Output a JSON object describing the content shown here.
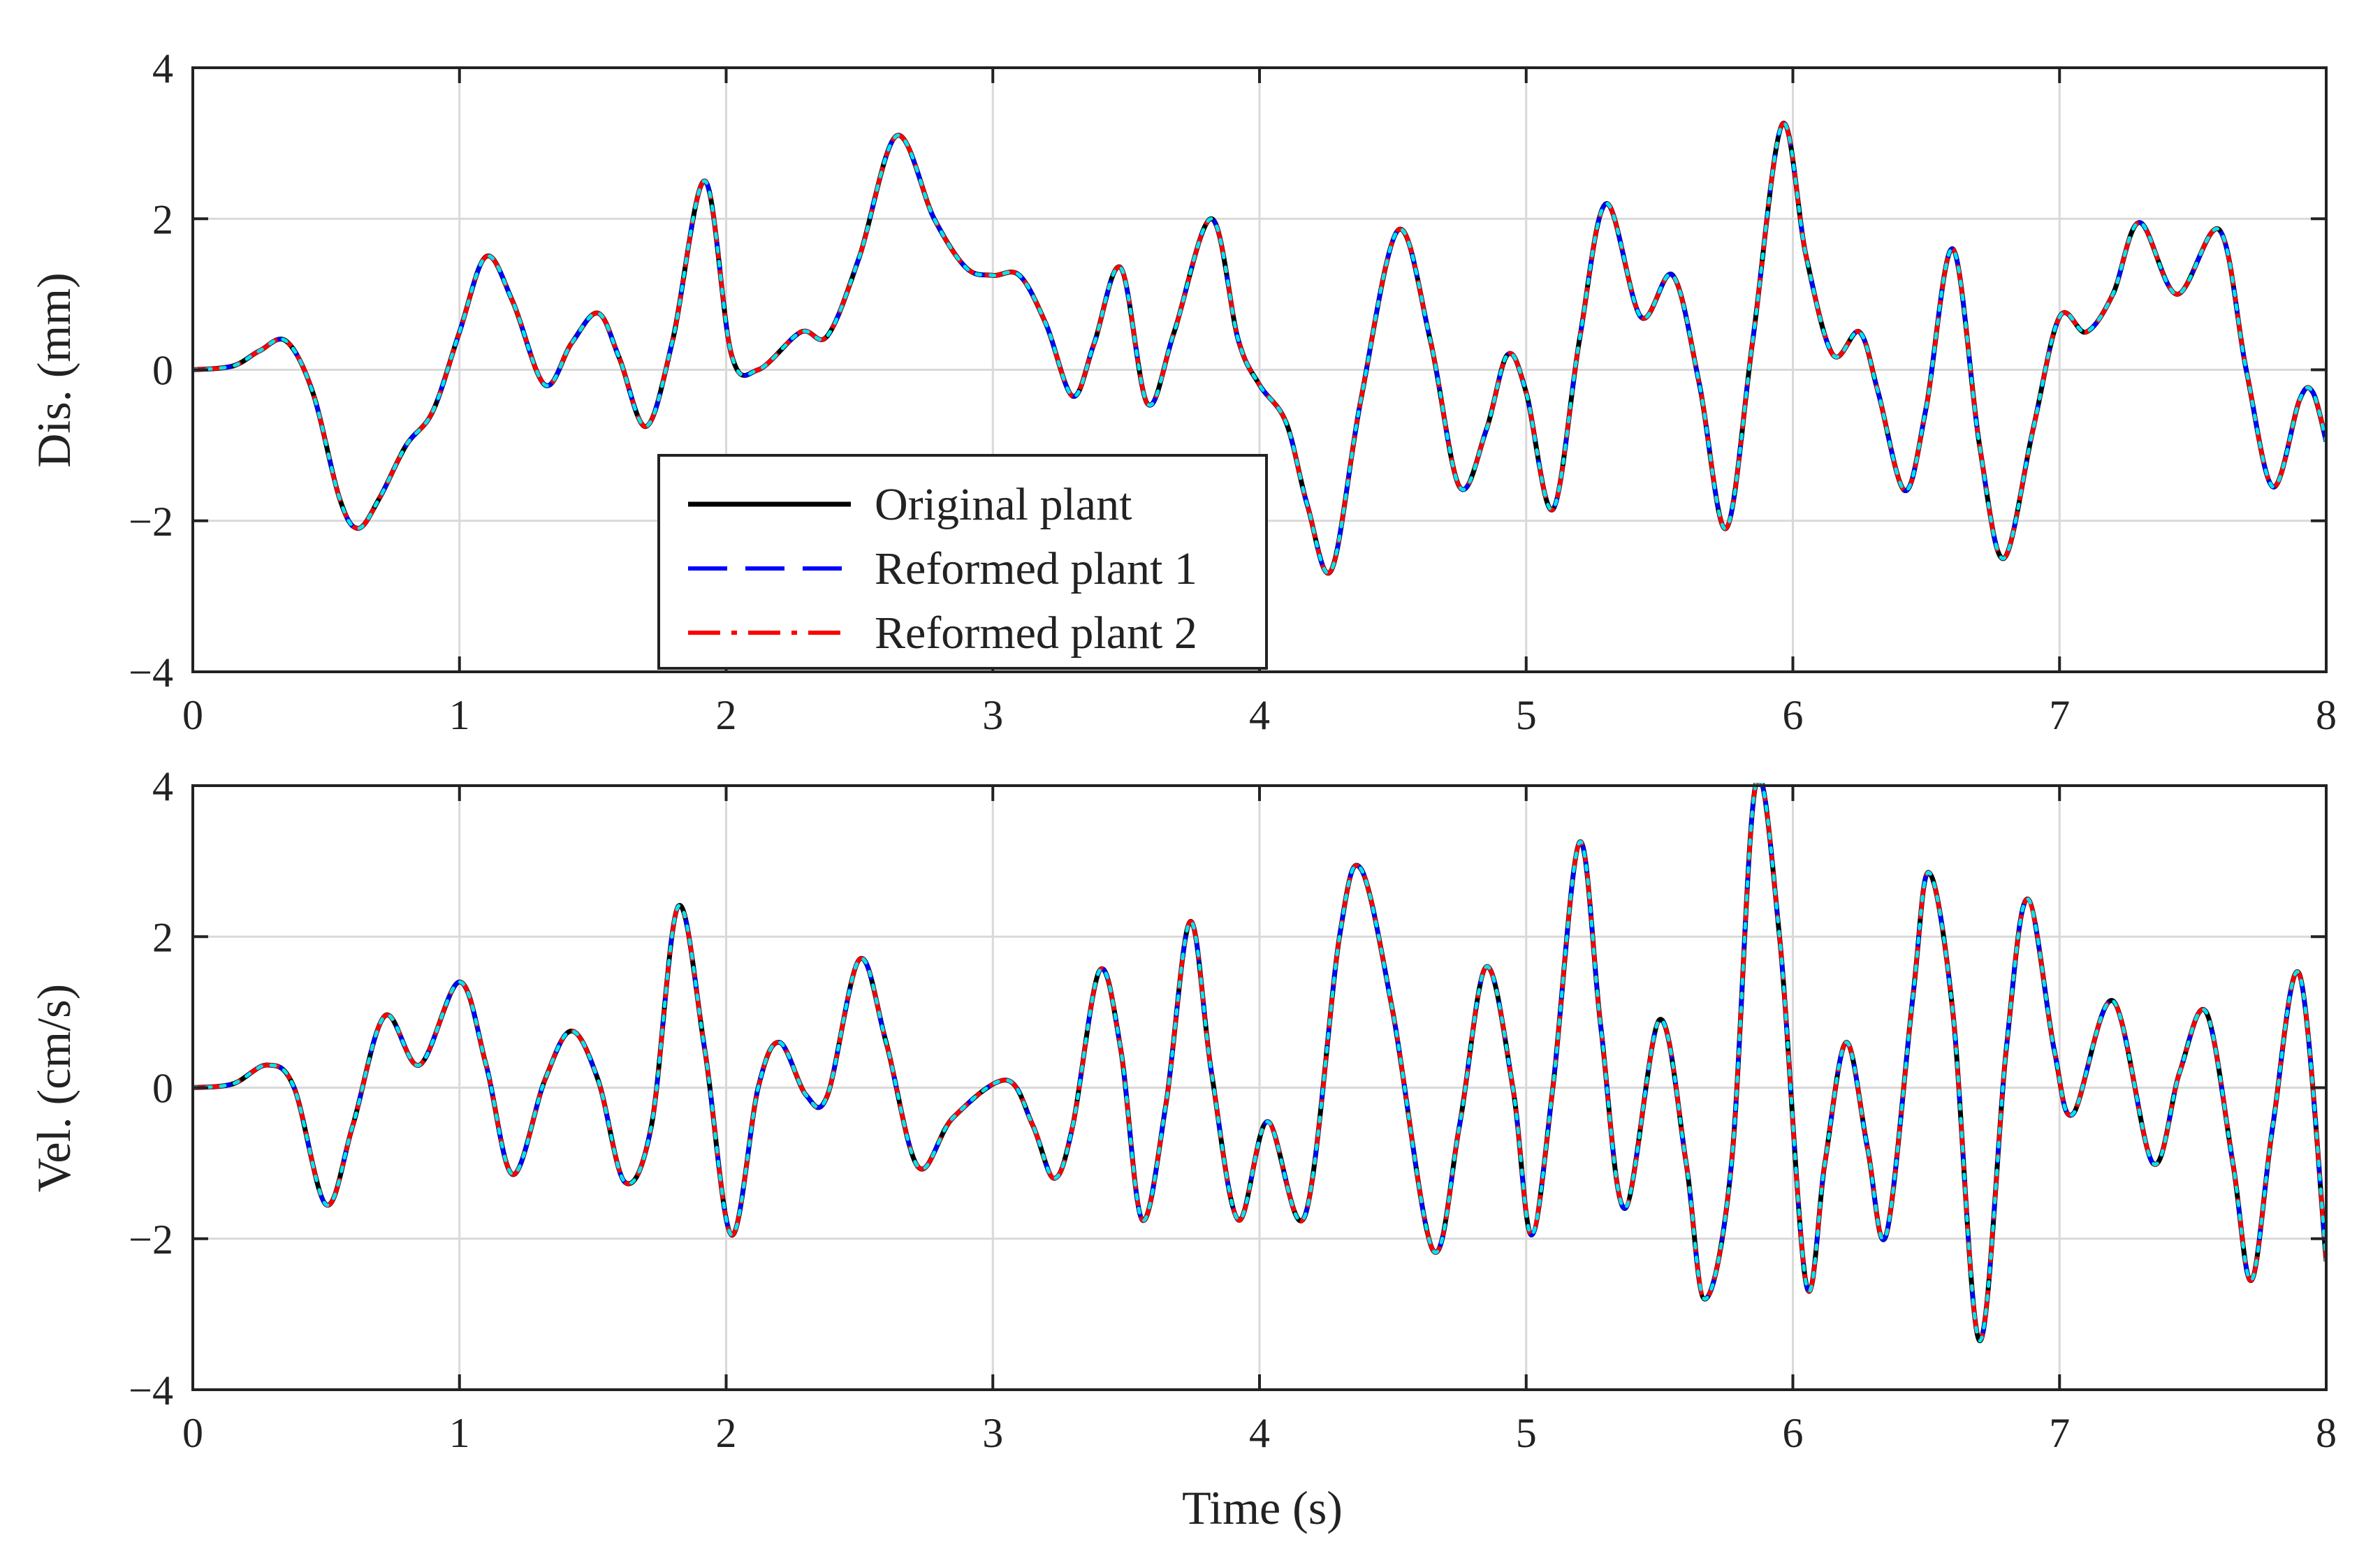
{
  "chart_data": [
    {
      "type": "line",
      "id": "displacement",
      "xlabel": "",
      "ylabel": "Dis. (mm)",
      "xlim": [
        0,
        8
      ],
      "ylim": [
        -4,
        4
      ],
      "xticks": [
        0,
        1,
        2,
        3,
        4,
        5,
        6,
        7,
        8
      ],
      "yticks": [
        -4,
        -2,
        0,
        2,
        4
      ],
      "xtick_labels": [
        "0",
        "1",
        "2",
        "3",
        "4",
        "5",
        "6",
        "7",
        "8"
      ],
      "ytick_labels": [
        "−4",
        "−2",
        "0",
        "2",
        "4"
      ],
      "grid": true,
      "legend": {
        "placement": "lower-center",
        "entries": [
          {
            "label": "Original plant",
            "style": "solid",
            "color": "#000000"
          },
          {
            "label": "Reformed plant 1",
            "style": "dashed",
            "color": "#0000ff"
          },
          {
            "label": "Reformed plant 2",
            "style": "dash-dot",
            "color": "#ff0000"
          }
        ]
      },
      "x": [
        0,
        0.15,
        0.25,
        0.35,
        0.45,
        0.55,
        0.62,
        0.7,
        0.8,
        0.9,
        1.0,
        1.1,
        1.2,
        1.32,
        1.42,
        1.52,
        1.6,
        1.7,
        1.8,
        1.92,
        2.02,
        2.12,
        2.28,
        2.38,
        2.5,
        2.64,
        2.78,
        2.9,
        3.0,
        3.1,
        3.2,
        3.3,
        3.38,
        3.48,
        3.58,
        3.68,
        3.82,
        3.92,
        4.0,
        4.1,
        4.18,
        4.27,
        4.38,
        4.52,
        4.64,
        4.75,
        4.85,
        4.93,
        5.0,
        5.1,
        5.2,
        5.3,
        5.43,
        5.55,
        5.65,
        5.75,
        5.85,
        5.96,
        6.05,
        6.15,
        6.25,
        6.32,
        6.42,
        6.5,
        6.6,
        6.7,
        6.79,
        6.9,
        7.0,
        7.1,
        7.2,
        7.3,
        7.44,
        7.6,
        7.7,
        7.8,
        7.9,
        7.95,
        8.0
      ],
      "series": [
        {
          "name": "Original plant",
          "color": "#000000",
          "style": "solid",
          "values": [
            0,
            0.05,
            0.25,
            0.38,
            -0.3,
            -1.7,
            -2.1,
            -1.7,
            -1.0,
            -0.55,
            0.5,
            1.5,
            0.9,
            -0.2,
            0.35,
            0.75,
            0.15,
            -0.75,
            0.4,
            2.5,
            0.2,
            0.0,
            0.5,
            0.45,
            1.5,
            3.1,
            2.0,
            1.35,
            1.25,
            1.25,
            0.6,
            -0.35,
            0.35,
            1.35,
            -0.45,
            0.5,
            2.0,
            0.4,
            -0.2,
            -0.7,
            -1.8,
            -2.65,
            -0.4,
            1.85,
            0.4,
            -1.55,
            -0.8,
            0.2,
            -0.3,
            -1.85,
            0.4,
            2.2,
            0.7,
            1.25,
            -0.2,
            -2.1,
            0.4,
            3.25,
            1.5,
            0.2,
            0.5,
            -0.3,
            -1.6,
            -0.5,
            1.6,
            -1.0,
            -2.5,
            -0.8,
            0.7,
            0.5,
            1.0,
            1.95,
            1.0,
            1.85,
            0.0,
            -1.55,
            -0.4,
            -0.3,
            -0.95
          ]
        },
        {
          "name": "Reformed plant 1",
          "color": "#0000ff",
          "style": "dashed",
          "values": [
            0,
            0.05,
            0.25,
            0.38,
            -0.3,
            -1.7,
            -2.1,
            -1.7,
            -1.0,
            -0.55,
            0.5,
            1.5,
            0.9,
            -0.2,
            0.35,
            0.75,
            0.15,
            -0.75,
            0.4,
            2.5,
            0.2,
            0.0,
            0.5,
            0.45,
            1.5,
            3.1,
            2.0,
            1.35,
            1.25,
            1.25,
            0.6,
            -0.35,
            0.35,
            1.35,
            -0.45,
            0.5,
            2.0,
            0.4,
            -0.2,
            -0.7,
            -1.8,
            -2.65,
            -0.4,
            1.85,
            0.4,
            -1.55,
            -0.8,
            0.2,
            -0.3,
            -1.85,
            0.4,
            2.2,
            0.7,
            1.25,
            -0.2,
            -2.1,
            0.4,
            3.25,
            1.5,
            0.2,
            0.5,
            -0.3,
            -1.6,
            -0.5,
            1.6,
            -1.0,
            -2.5,
            -0.8,
            0.7,
            0.5,
            1.0,
            1.95,
            1.0,
            1.85,
            0.0,
            -1.55,
            -0.4,
            -0.3,
            -0.95
          ]
        },
        {
          "name": "Reformed plant 2",
          "color": "#ff0000",
          "style": "dash-dot",
          "values": [
            0,
            0.05,
            0.25,
            0.38,
            -0.3,
            -1.7,
            -2.1,
            -1.7,
            -1.0,
            -0.55,
            0.5,
            1.5,
            0.9,
            -0.2,
            0.35,
            0.75,
            0.15,
            -0.75,
            0.4,
            2.5,
            0.2,
            0.0,
            0.5,
            0.45,
            1.5,
            3.1,
            2.0,
            1.35,
            1.25,
            1.25,
            0.6,
            -0.35,
            0.35,
            1.35,
            -0.45,
            0.5,
            2.0,
            0.4,
            -0.2,
            -0.7,
            -1.8,
            -2.65,
            -0.4,
            1.85,
            0.4,
            -1.55,
            -0.8,
            0.2,
            -0.3,
            -1.85,
            0.4,
            2.2,
            0.7,
            1.25,
            -0.2,
            -2.1,
            0.4,
            3.25,
            1.5,
            0.2,
            0.5,
            -0.3,
            -1.6,
            -0.5,
            1.6,
            -1.0,
            -2.5,
            -0.8,
            0.7,
            0.5,
            1.0,
            1.95,
            1.0,
            1.85,
            0.0,
            -1.55,
            -0.4,
            -0.3,
            -0.95
          ]
        },
        {
          "name": "",
          "color": "#00e5ee",
          "style": "dotted",
          "values": [
            0,
            0.05,
            0.25,
            0.38,
            -0.3,
            -1.7,
            -2.1,
            -1.7,
            -1.0,
            -0.55,
            0.5,
            1.5,
            0.9,
            -0.2,
            0.35,
            0.75,
            0.15,
            -0.75,
            0.4,
            2.5,
            0.2,
            0.0,
            0.5,
            0.45,
            1.5,
            3.1,
            2.0,
            1.35,
            1.25,
            1.25,
            0.6,
            -0.35,
            0.35,
            1.35,
            -0.45,
            0.5,
            2.0,
            0.4,
            -0.2,
            -0.7,
            -1.8,
            -2.65,
            -0.4,
            1.85,
            0.4,
            -1.55,
            -0.8,
            0.2,
            -0.3,
            -1.85,
            0.4,
            2.2,
            0.7,
            1.25,
            -0.2,
            -2.1,
            0.4,
            3.25,
            1.5,
            0.2,
            0.5,
            -0.3,
            -1.6,
            -0.5,
            1.6,
            -1.0,
            -2.5,
            -0.8,
            0.7,
            0.5,
            1.0,
            1.95,
            1.0,
            1.85,
            0.0,
            -1.55,
            -0.4,
            -0.3,
            -0.95
          ]
        }
      ]
    },
    {
      "type": "line",
      "id": "velocity",
      "xlabel": "Time (s)",
      "ylabel": "Vel. (cm/s)",
      "xlim": [
        0,
        8
      ],
      "ylim": [
        -4,
        4
      ],
      "xticks": [
        0,
        1,
        2,
        3,
        4,
        5,
        6,
        7,
        8
      ],
      "yticks": [
        -4,
        -2,
        0,
        2,
        4
      ],
      "xtick_labels": [
        "0",
        "1",
        "2",
        "3",
        "4",
        "5",
        "6",
        "7",
        "8"
      ],
      "ytick_labels": [
        "−4",
        "−2",
        "0",
        "2",
        "4"
      ],
      "grid": true,
      "x": [
        0,
        0.15,
        0.28,
        0.38,
        0.5,
        0.6,
        0.72,
        0.85,
        1.0,
        1.1,
        1.2,
        1.32,
        1.42,
        1.52,
        1.62,
        1.72,
        1.82,
        1.92,
        2.02,
        2.12,
        2.2,
        2.3,
        2.38,
        2.5,
        2.6,
        2.72,
        2.85,
        3.05,
        3.15,
        3.23,
        3.3,
        3.4,
        3.48,
        3.56,
        3.65,
        3.74,
        3.82,
        3.92,
        4.03,
        4.17,
        4.3,
        4.38,
        4.5,
        4.65,
        4.75,
        4.85,
        4.95,
        5.02,
        5.1,
        5.2,
        5.28,
        5.37,
        5.5,
        5.6,
        5.67,
        5.77,
        5.86,
        5.95,
        6.05,
        6.12,
        6.2,
        6.28,
        6.35,
        6.45,
        6.51,
        6.6,
        6.7,
        6.8,
        6.88,
        6.98,
        7.05,
        7.2,
        7.35,
        7.45,
        7.55,
        7.65,
        7.72,
        7.8,
        7.9,
        8.0
      ],
      "series": [
        {
          "name": "Original plant",
          "color": "#000000",
          "style": "solid",
          "values": [
            0,
            0.05,
            0.3,
            0.0,
            -1.55,
            -0.5,
            0.95,
            0.3,
            1.4,
            0.3,
            -1.15,
            0.1,
            0.75,
            0.1,
            -1.25,
            -0.5,
            2.4,
            0.5,
            -1.95,
            0.0,
            0.6,
            -0.1,
            -0.1,
            1.7,
            0.6,
            -1.05,
            -0.4,
            0.1,
            -0.5,
            -1.2,
            -0.5,
            1.55,
            0.5,
            -1.75,
            -0.2,
            2.2,
            0.2,
            -1.75,
            -0.45,
            -1.7,
            2.0,
            2.9,
            1.0,
            -2.15,
            -0.5,
            1.6,
            0.0,
            -1.95,
            0.0,
            3.25,
            0.8,
            -1.6,
            0.9,
            -1.0,
            -2.8,
            -1.0,
            4.0,
            2.0,
            -2.6,
            -1.0,
            0.6,
            -0.8,
            -1.95,
            1.2,
            2.85,
            1.0,
            -3.35,
            0.5,
            2.5,
            0.5,
            -0.35,
            1.15,
            -1.0,
            0.2,
            1.0,
            -1.0,
            -2.55,
            -0.5,
            1.5,
            -2.3
          ]
        },
        {
          "name": "Reformed plant 1",
          "color": "#0000ff",
          "style": "dashed",
          "values": [
            0,
            0.05,
            0.3,
            0.0,
            -1.55,
            -0.5,
            0.95,
            0.3,
            1.4,
            0.3,
            -1.15,
            0.1,
            0.75,
            0.1,
            -1.25,
            -0.5,
            2.4,
            0.5,
            -1.95,
            0.0,
            0.6,
            -0.1,
            -0.1,
            1.7,
            0.6,
            -1.05,
            -0.4,
            0.1,
            -0.5,
            -1.2,
            -0.5,
            1.55,
            0.5,
            -1.75,
            -0.2,
            2.2,
            0.2,
            -1.75,
            -0.45,
            -1.7,
            2.0,
            2.9,
            1.0,
            -2.15,
            -0.5,
            1.6,
            0.0,
            -1.95,
            0.0,
            3.25,
            0.8,
            -1.6,
            0.9,
            -1.0,
            -2.8,
            -1.0,
            4.0,
            2.0,
            -2.6,
            -1.0,
            0.6,
            -0.8,
            -1.95,
            1.2,
            2.85,
            1.0,
            -3.35,
            0.5,
            2.5,
            0.5,
            -0.35,
            1.15,
            -1.0,
            0.2,
            1.0,
            -1.0,
            -2.55,
            -0.5,
            1.5,
            -2.3
          ]
        },
        {
          "name": "Reformed plant 2",
          "color": "#ff0000",
          "style": "dash-dot",
          "values": [
            0,
            0.05,
            0.3,
            0.0,
            -1.55,
            -0.5,
            0.95,
            0.3,
            1.4,
            0.3,
            -1.15,
            0.1,
            0.75,
            0.1,
            -1.25,
            -0.5,
            2.4,
            0.5,
            -1.95,
            0.0,
            0.6,
            -0.1,
            -0.1,
            1.7,
            0.6,
            -1.05,
            -0.4,
            0.1,
            -0.5,
            -1.2,
            -0.5,
            1.55,
            0.5,
            -1.75,
            -0.2,
            2.2,
            0.2,
            -1.75,
            -0.45,
            -1.7,
            2.0,
            2.9,
            1.0,
            -2.15,
            -0.5,
            1.6,
            0.0,
            -1.95,
            0.0,
            3.25,
            0.8,
            -1.6,
            0.9,
            -1.0,
            -2.8,
            -1.0,
            4.0,
            2.0,
            -2.6,
            -1.0,
            0.6,
            -0.8,
            -1.95,
            1.2,
            2.85,
            1.0,
            -3.35,
            0.5,
            2.5,
            0.5,
            -0.35,
            1.15,
            -1.0,
            0.2,
            1.0,
            -1.0,
            -2.55,
            -0.5,
            1.5,
            -2.3
          ]
        },
        {
          "name": "",
          "color": "#00e5ee",
          "style": "dotted",
          "values": [
            0,
            0.05,
            0.3,
            0.0,
            -1.55,
            -0.5,
            0.95,
            0.3,
            1.4,
            0.3,
            -1.15,
            0.1,
            0.75,
            0.1,
            -1.25,
            -0.5,
            2.4,
            0.5,
            -1.95,
            0.0,
            0.6,
            -0.1,
            -0.1,
            1.7,
            0.6,
            -1.05,
            -0.4,
            0.1,
            -0.5,
            -1.2,
            -0.5,
            1.55,
            0.5,
            -1.75,
            -0.2,
            2.2,
            0.2,
            -1.75,
            -0.45,
            -1.7,
            2.0,
            2.9,
            1.0,
            -2.15,
            -0.5,
            1.6,
            0.0,
            -1.95,
            0.0,
            3.25,
            0.8,
            -1.6,
            0.9,
            -1.0,
            -2.8,
            -1.0,
            4.0,
            2.0,
            -2.6,
            -1.0,
            0.6,
            -0.8,
            -1.95,
            1.2,
            2.85,
            1.0,
            -3.35,
            0.5,
            2.5,
            0.5,
            -0.35,
            1.15,
            -1.0,
            0.2,
            1.0,
            -1.0,
            -2.55,
            -0.5,
            1.5,
            -2.3
          ]
        }
      ]
    }
  ]
}
